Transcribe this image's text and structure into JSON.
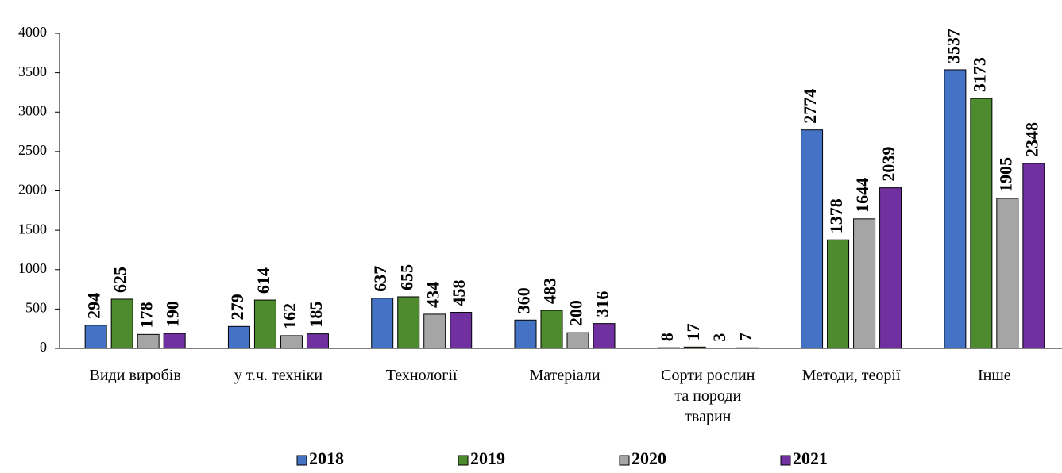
{
  "chart_data": {
    "type": "bar",
    "categories": [
      "Види виробів",
      "у т.ч. техніки",
      "Технології",
      "Матеріали",
      "Сорти рослин та породи тварин",
      "Методи, теорії",
      "Інше"
    ],
    "series": [
      {
        "name": "2018",
        "color": "#4472c4",
        "values": [
          294,
          279,
          637,
          360,
          8,
          2774,
          3537
        ]
      },
      {
        "name": "2019",
        "color": "#4e8a2e",
        "values": [
          625,
          614,
          655,
          483,
          17,
          1378,
          3173
        ]
      },
      {
        "name": "2020",
        "color": "#a5a5a5",
        "values": [
          178,
          162,
          434,
          200,
          3,
          1644,
          1905
        ]
      },
      {
        "name": "2021",
        "color": "#7030a0",
        "values": [
          190,
          185,
          458,
          316,
          7,
          2039,
          2348
        ]
      }
    ],
    "ylim": [
      0,
      4000
    ],
    "yticks": [
      0,
      500,
      1000,
      1500,
      2000,
      2500,
      3000,
      3500,
      4000
    ],
    "grid": false,
    "legend": "bottom"
  }
}
